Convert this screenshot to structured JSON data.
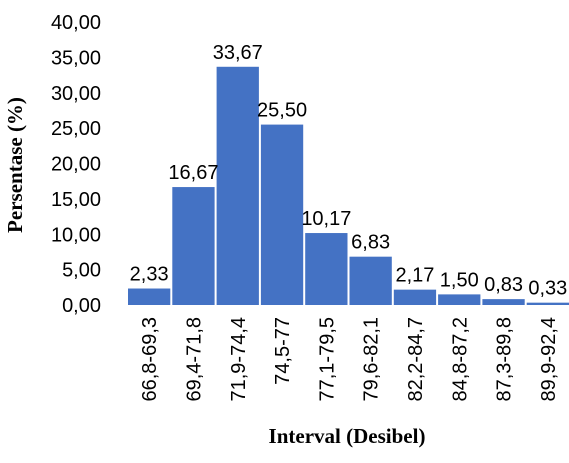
{
  "chart_data": {
    "type": "bar",
    "title": "",
    "xlabel": "Interval (Desibel)",
    "ylabel": "Persentase (%)",
    "ylim": [
      0,
      40
    ],
    "yticks": [
      "0,00",
      "5,00",
      "10,00",
      "15,00",
      "20,00",
      "25,00",
      "30,00",
      "35,00",
      "40,00"
    ],
    "categories": [
      "66,8-69,3",
      "69,4-71,8",
      "71,9-74,4",
      "74,5-77",
      "77,1-79,5",
      "79,6-82,1",
      "82,2-84,7",
      "84,8-87,2",
      "87,3-89,8",
      "89,9-92,4"
    ],
    "values": [
      2.33,
      16.67,
      33.67,
      25.5,
      10.17,
      6.83,
      2.17,
      1.5,
      0.83,
      0.33
    ],
    "value_labels": [
      "2,33",
      "16,67",
      "33,67",
      "25,50",
      "10,17",
      "6,83",
      "2,17",
      "1,50",
      "0,83",
      "0,33"
    ],
    "bar_color": "#4472C4",
    "grid": false,
    "legend": "none"
  }
}
